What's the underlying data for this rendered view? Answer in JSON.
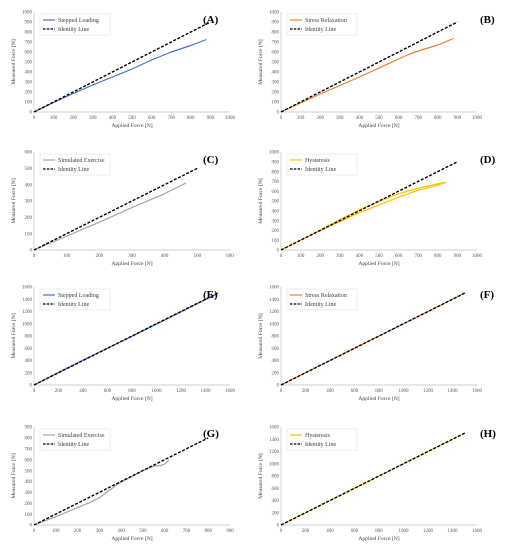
{
  "chart_data": [
    {
      "type": "line",
      "panel_label": "(A)",
      "xlabel": "Applied Force [N]",
      "ylabel": "Measured Force [N]",
      "xlim": [
        0,
        1000
      ],
      "ylim": [
        0,
        1000
      ],
      "xticks": [
        "0",
        "100",
        "200",
        "300",
        "400",
        "500",
        "600",
        "700",
        "800",
        "900",
        "1000"
      ],
      "yticks": [
        "0",
        "100",
        "200",
        "300",
        "400",
        "500",
        "600",
        "700",
        "800",
        "900",
        "1000"
      ],
      "legend_position": "top-left",
      "series": [
        {
          "name": "Stepped Loading",
          "color": "#4472c4",
          "dash": "solid",
          "x": [
            0,
            100,
            200,
            300,
            400,
            500,
            600,
            700,
            800,
            880
          ],
          "y": [
            0,
            95,
            185,
            270,
            350,
            430,
            520,
            600,
            665,
            725
          ]
        },
        {
          "name": "Identity Line",
          "color": "#000000",
          "dash": "dashed",
          "x": [
            0,
            900
          ],
          "y": [
            0,
            900
          ]
        }
      ]
    },
    {
      "type": "line",
      "panel_label": "(B)",
      "xlabel": "Applied Force [N]",
      "ylabel": "Measured Force [N]",
      "xlim": [
        0,
        1000
      ],
      "ylim": [
        0,
        1000
      ],
      "xticks": [
        "0",
        "100",
        "200",
        "300",
        "400",
        "500",
        "600",
        "700",
        "800",
        "900",
        "1000"
      ],
      "yticks": [
        "0",
        "100",
        "200",
        "300",
        "400",
        "500",
        "600",
        "700",
        "800",
        "900",
        "1000"
      ],
      "legend_position": "top-left",
      "series": [
        {
          "name": "Stress Relaxation",
          "color": "#ed7d31",
          "dash": "solid",
          "x": [
            0,
            100,
            200,
            300,
            400,
            500,
            600,
            650,
            700,
            800,
            880
          ],
          "y": [
            0,
            90,
            180,
            265,
            350,
            440,
            530,
            575,
            610,
            670,
            735
          ]
        },
        {
          "name": "Identity Line",
          "color": "#000000",
          "dash": "dashed",
          "x": [
            0,
            900
          ],
          "y": [
            0,
            900
          ]
        }
      ]
    },
    {
      "type": "line",
      "panel_label": "(C)",
      "xlabel": "Applied Force [N]",
      "ylabel": "Measured Force [N]",
      "xlim": [
        0,
        600
      ],
      "ylim": [
        0,
        600
      ],
      "xticks": [
        "0",
        "100",
        "200",
        "300",
        "400",
        "500",
        "600"
      ],
      "yticks": [
        "0",
        "100",
        "200",
        "300",
        "400",
        "500",
        "600"
      ],
      "legend_position": "top-left",
      "series": [
        {
          "name": "Simulated Exercise",
          "color": "#a5a5a5",
          "dash": "solid",
          "x": [
            0,
            100,
            200,
            300,
            400,
            440,
            465
          ],
          "y": [
            0,
            85,
            170,
            260,
            345,
            385,
            410
          ]
        },
        {
          "name": "Identity Line",
          "color": "#000000",
          "dash": "dashed",
          "x": [
            0,
            500
          ],
          "y": [
            0,
            500
          ]
        }
      ]
    },
    {
      "type": "line",
      "panel_label": "(D)",
      "xlabel": "Applied Force [N]",
      "ylabel": "Measured Force [N]",
      "xlim": [
        0,
        1000
      ],
      "ylim": [
        0,
        1000
      ],
      "xticks": [
        "0",
        "100",
        "200",
        "300",
        "400",
        "500",
        "600",
        "700",
        "800",
        "900",
        "1000"
      ],
      "yticks": [
        "0",
        "100",
        "200",
        "300",
        "400",
        "500",
        "600",
        "700",
        "800",
        "900",
        "1000"
      ],
      "legend_position": "top-left",
      "series": [
        {
          "name": "Hysteresis",
          "color": "#ffc000",
          "dash": "solid",
          "x": [
            0,
            100,
            200,
            300,
            400,
            500,
            600,
            700,
            800,
            840,
            800,
            700,
            600,
            500,
            400,
            300,
            200,
            100,
            0
          ],
          "y": [
            0,
            100,
            200,
            290,
            380,
            460,
            540,
            610,
            660,
            690,
            675,
            630,
            575,
            495,
            410,
            310,
            205,
            100,
            0
          ]
        },
        {
          "name": "Identity Line",
          "color": "#000000",
          "dash": "dashed",
          "x": [
            0,
            900
          ],
          "y": [
            0,
            900
          ]
        }
      ]
    },
    {
      "type": "line",
      "panel_label": "(E)",
      "xlabel": "Applied Force [N]",
      "ylabel": "Measured Force [N]",
      "xlim": [
        0,
        1600
      ],
      "ylim": [
        0,
        1600
      ],
      "xticks": [
        "0",
        "200",
        "400",
        "600",
        "800",
        "1000",
        "1200",
        "1400",
        "1600"
      ],
      "yticks": [
        "0",
        "200",
        "400",
        "600",
        "800",
        "1000",
        "1200",
        "1400",
        "1600"
      ],
      "legend_position": "top-left",
      "series": [
        {
          "name": "Stepped Loading",
          "color": "#4472c4",
          "dash": "solid",
          "x": [
            0,
            200,
            400,
            600,
            800,
            1000,
            1200,
            1400,
            1500
          ],
          "y": [
            0,
            205,
            405,
            600,
            795,
            995,
            1195,
            1395,
            1495
          ]
        },
        {
          "name": "Identity Line",
          "color": "#000000",
          "dash": "dashed",
          "x": [
            0,
            1500
          ],
          "y": [
            0,
            1500
          ]
        }
      ]
    },
    {
      "type": "line",
      "panel_label": "(F)",
      "xlabel": "Applied Force [N]",
      "ylabel": "Measured Force [N]",
      "xlim": [
        0,
        1600
      ],
      "ylim": [
        0,
        1600
      ],
      "xticks": [
        "0",
        "200",
        "400",
        "600",
        "800",
        "1000",
        "1200",
        "1400",
        "1600"
      ],
      "yticks": [
        "0",
        "200",
        "400",
        "600",
        "800",
        "1000",
        "1200",
        "1400",
        "1600"
      ],
      "legend_position": "top-left",
      "series": [
        {
          "name": "Stress Relaxation",
          "color": "#ed7d31",
          "dash": "solid",
          "x": [
            0,
            200,
            400,
            600,
            800,
            1000,
            1200,
            1400,
            1500
          ],
          "y": [
            0,
            200,
            400,
            600,
            800,
            1000,
            1200,
            1400,
            1500
          ]
        },
        {
          "name": "Identity Line",
          "color": "#000000",
          "dash": "dashed",
          "x": [
            0,
            1500
          ],
          "y": [
            0,
            1500
          ]
        }
      ]
    },
    {
      "type": "line",
      "panel_label": "(G)",
      "xlabel": "Applied Force [N]",
      "ylabel": "Measured Force [N]",
      "xlim": [
        0,
        900
      ],
      "ylim": [
        0,
        900
      ],
      "xticks": [
        "0",
        "100",
        "200",
        "300",
        "400",
        "500",
        "600",
        "700",
        "800",
        "900"
      ],
      "yticks": [
        "0",
        "100",
        "200",
        "300",
        "400",
        "500",
        "600",
        "700",
        "800",
        "900"
      ],
      "legend_position": "top-left",
      "series": [
        {
          "name": "Simulated Exercise",
          "color": "#a5a5a5",
          "dash": "solid",
          "x": [
            0,
            100,
            200,
            250,
            300,
            350,
            400,
            450,
            500,
            550,
            580,
            600,
            620
          ],
          "y": [
            0,
            75,
            160,
            200,
            250,
            325,
            395,
            445,
            500,
            540,
            545,
            560,
            595
          ]
        },
        {
          "name": "Identity Line",
          "color": "#000000",
          "dash": "dashed",
          "x": [
            0,
            800
          ],
          "y": [
            0,
            800
          ]
        }
      ]
    },
    {
      "type": "line",
      "panel_label": "(H)",
      "xlabel": "Applied Force [N]",
      "ylabel": "Measured Force [N]",
      "xlim": [
        0,
        1600
      ],
      "ylim": [
        0,
        1600
      ],
      "xticks": [
        "0",
        "200",
        "400",
        "600",
        "800",
        "1000",
        "1200",
        "1400",
        "1600"
      ],
      "yticks": [
        "0",
        "200",
        "400",
        "600",
        "800",
        "1000",
        "1200",
        "1400",
        "1600"
      ],
      "legend_position": "top-left",
      "series": [
        {
          "name": "Hysteresis",
          "color": "#ffc000",
          "dash": "solid",
          "x": [
            0,
            200,
            400,
            600,
            800,
            1000,
            1200,
            1400,
            1500
          ],
          "y": [
            0,
            200,
            400,
            600,
            800,
            1000,
            1200,
            1400,
            1500
          ]
        },
        {
          "name": "Identity Line",
          "color": "#000000",
          "dash": "dashed",
          "x": [
            0,
            1500
          ],
          "y": [
            0,
            1500
          ]
        }
      ]
    }
  ]
}
